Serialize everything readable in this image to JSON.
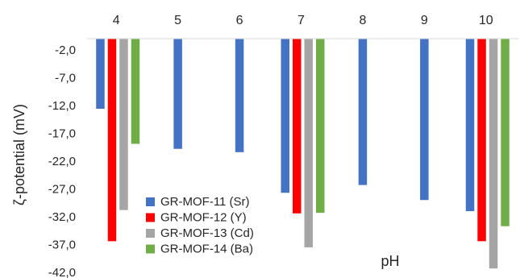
{
  "chart_data": {
    "type": "bar",
    "title": "",
    "xlabel": "pH",
    "ylabel": "ζ-potential  (mV)",
    "categories": [
      "4",
      "5",
      "6",
      "7",
      "8",
      "9",
      "10"
    ],
    "ylim": [
      -42.0,
      0
    ],
    "yticks": [
      "-2,0",
      "-7,0",
      "-12,0",
      "-17,0",
      "-22,0",
      "-27,0",
      "-32,0",
      "-37,0",
      "-42,0"
    ],
    "ytick_values": [
      -2,
      -7,
      -12,
      -17,
      -22,
      -27,
      -32,
      -37,
      -42
    ],
    "x_axis_position": "top",
    "legend_position": "bottom-left",
    "grid": false,
    "series": [
      {
        "name": "GR-MOF-11 (Sr)",
        "color": "#4472C4",
        "values": [
          -12.6,
          -19.8,
          -20.4,
          -27.7,
          -26.3,
          -29.0,
          -31.0
        ]
      },
      {
        "name": "GR-MOF-12 (Y)",
        "color": "#FF0000",
        "values": [
          -36.4,
          null,
          null,
          -31.4,
          null,
          null,
          -36.4
        ]
      },
      {
        "name": "GR-MOF-13 (Cd)",
        "color": "#A5A5A5",
        "values": [
          -30.8,
          null,
          null,
          -37.5,
          null,
          null,
          -41.3
        ]
      },
      {
        "name": "GR-MOF-14 (Ba)",
        "color": "#70AD47",
        "values": [
          -18.9,
          null,
          null,
          -31.3,
          null,
          null,
          -33.7
        ]
      }
    ]
  }
}
